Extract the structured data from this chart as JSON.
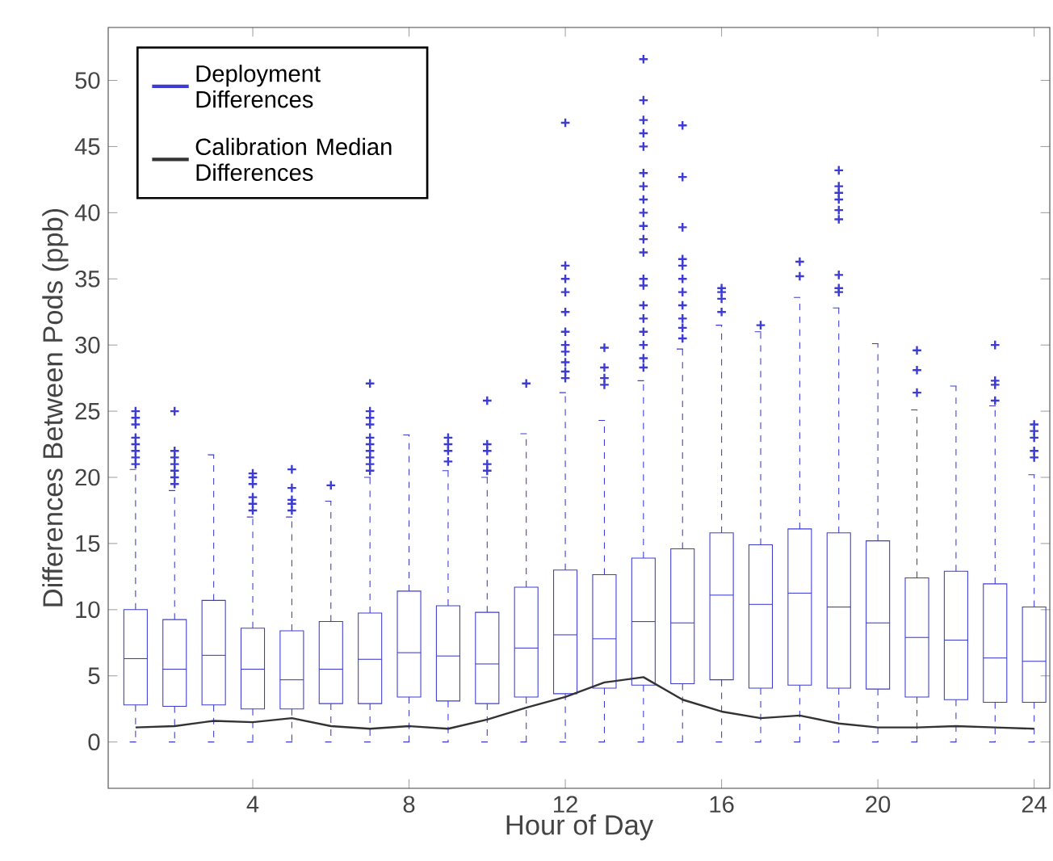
{
  "chart_data": {
    "type": "box",
    "xlabel": "Hour of Day",
    "ylabel": "Differences Between Pods (ppb)",
    "xlim": [
      0.3,
      24.4
    ],
    "ylim": [
      -3.5,
      54
    ],
    "xticks": [
      4,
      8,
      12,
      16,
      20,
      24
    ],
    "yticks": [
      0,
      5,
      10,
      15,
      20,
      25,
      30,
      35,
      40,
      45,
      50
    ],
    "legend": "top left",
    "grid": false,
    "x": [
      1,
      2,
      3,
      4,
      5,
      6,
      7,
      8,
      9,
      10,
      11,
      12,
      13,
      14,
      15,
      16,
      17,
      18,
      19,
      20,
      21,
      22,
      23,
      24
    ],
    "series": [
      {
        "name": "Deployment Differences",
        "color": "#3c3cd2",
        "boxes": [
          {
            "low": 0,
            "q1": 2.8,
            "median": 6.3,
            "q3": 10.0,
            "high": 20.6,
            "outliers": [
              21,
              21.5,
              22,
              22.5,
              23,
              24,
              24.5,
              25
            ]
          },
          {
            "low": 0,
            "q1": 2.7,
            "median": 5.5,
            "q3": 9.25,
            "high": 19,
            "outliers": [
              19.5,
              20,
              20.5,
              21,
              21.5,
              22,
              25
            ]
          },
          {
            "low": 0,
            "q1": 2.8,
            "median": 6.55,
            "q3": 10.7,
            "high": 21.7
          },
          {
            "low": 0,
            "q1": 2.5,
            "median": 5.5,
            "q3": 8.6,
            "high": 17,
            "outliers": [
              17.5,
              18,
              18.5,
              19.5,
              20,
              20.3
            ]
          },
          {
            "low": 0,
            "q1": 2.5,
            "median": 4.7,
            "q3": 8.4,
            "high": 17,
            "outliers": [
              17.5,
              18,
              18.3,
              19.2,
              20.6
            ]
          },
          {
            "low": 0,
            "q1": 2.9,
            "median": 5.5,
            "q3": 9.1,
            "high": 18.2,
            "outliers": [
              19.4
            ]
          },
          {
            "low": 0,
            "q1": 2.9,
            "median": 6.25,
            "q3": 9.75,
            "high": 20,
            "outliers": [
              20.5,
              21,
              21.5,
              22,
              22.5,
              23,
              24,
              24.5,
              25,
              27.1
            ]
          },
          {
            "low": 0,
            "q1": 3.4,
            "median": 6.75,
            "q3": 11.4,
            "high": 23.2
          },
          {
            "low": 0,
            "q1": 3.1,
            "median": 6.5,
            "q3": 10.3,
            "high": 20.5,
            "outliers": [
              21.2,
              22,
              22.5,
              23
            ]
          },
          {
            "low": 0,
            "q1": 2.9,
            "median": 5.9,
            "q3": 9.8,
            "high": 20,
            "outliers": [
              20.5,
              21,
              22,
              22.5,
              25.8
            ]
          },
          {
            "low": 0,
            "q1": 3.4,
            "median": 7.1,
            "q3": 11.7,
            "high": 23.3,
            "outliers": [
              27.1
            ]
          },
          {
            "low": 0,
            "q1": 3.65,
            "median": 8.1,
            "q3": 13.0,
            "high": 26.4,
            "outliers": [
              27.5,
              28,
              28.7,
              29.5,
              30,
              31,
              32.5,
              34,
              35,
              36,
              46.8
            ]
          },
          {
            "low": 0,
            "q1": 4.07,
            "median": 7.8,
            "q3": 12.65,
            "high": 24.3,
            "outliers": [
              27,
              27.5,
              28.3,
              29.8
            ]
          },
          {
            "low": 0,
            "q1": 4.3,
            "median": 9.1,
            "q3": 13.9,
            "high": 27.3,
            "outliers": [
              28.3,
              29,
              30,
              31,
              32,
              33,
              34.5,
              35,
              37,
              38,
              39,
              40,
              41,
              42,
              43,
              45,
              46,
              47,
              48.5,
              51.6
            ]
          },
          {
            "low": 0,
            "q1": 4.4,
            "median": 9.0,
            "q3": 14.6,
            "high": 29.7,
            "outliers": [
              30.5,
              31.3,
              32,
              33,
              34,
              35,
              36,
              36.5,
              38.9,
              42.7,
              46.6
            ]
          },
          {
            "low": 0,
            "q1": 4.7,
            "median": 11.1,
            "q3": 15.8,
            "high": 31.5,
            "outliers": [
              32.5,
              33.5,
              34,
              34.3
            ]
          },
          {
            "low": 0,
            "q1": 4.07,
            "median": 10.4,
            "q3": 14.9,
            "high": 31,
            "outliers": [
              31.5
            ]
          },
          {
            "low": 0,
            "q1": 4.3,
            "median": 11.25,
            "q3": 16.1,
            "high": 33.6,
            "outliers": [
              35.2,
              36.3
            ]
          },
          {
            "low": 0,
            "q1": 4.07,
            "median": 10.2,
            "q3": 15.8,
            "high": 32.8,
            "outliers": [
              34,
              34.3,
              35.3,
              39.5,
              40.2,
              41,
              41.5,
              42,
              43.2
            ]
          },
          {
            "low": 0,
            "q1": 4.0,
            "median": 9.0,
            "q3": 15.2,
            "high": 30.1
          },
          {
            "low": 0,
            "q1": 3.4,
            "median": 7.9,
            "q3": 12.4,
            "high": 25.1,
            "outliers": [
              26.4,
              28.1,
              29.6
            ]
          },
          {
            "low": 0,
            "q1": 3.2,
            "median": 7.7,
            "q3": 12.9,
            "high": 26.9
          },
          {
            "low": 0,
            "q1": 3.0,
            "median": 6.35,
            "q3": 11.95,
            "high": 25.4,
            "outliers": [
              25.8,
              27,
              27.3,
              30
            ]
          },
          {
            "low": 0,
            "q1": 3.0,
            "median": 6.1,
            "q3": 10.2,
            "high": 20.2,
            "outliers": [
              21.5,
              22,
              23,
              23.5,
              24
            ]
          }
        ]
      },
      {
        "name": "Calibration Median Differences",
        "type": "line",
        "color": "#333333",
        "values": [
          1.1,
          1.2,
          1.6,
          1.5,
          1.8,
          1.2,
          1.0,
          1.2,
          1.0,
          1.7,
          2.6,
          3.4,
          4.5,
          4.9,
          3.2,
          2.3,
          1.8,
          2.0,
          1.4,
          1.1,
          1.1,
          1.2,
          1.1,
          1.0
        ]
      }
    ]
  }
}
